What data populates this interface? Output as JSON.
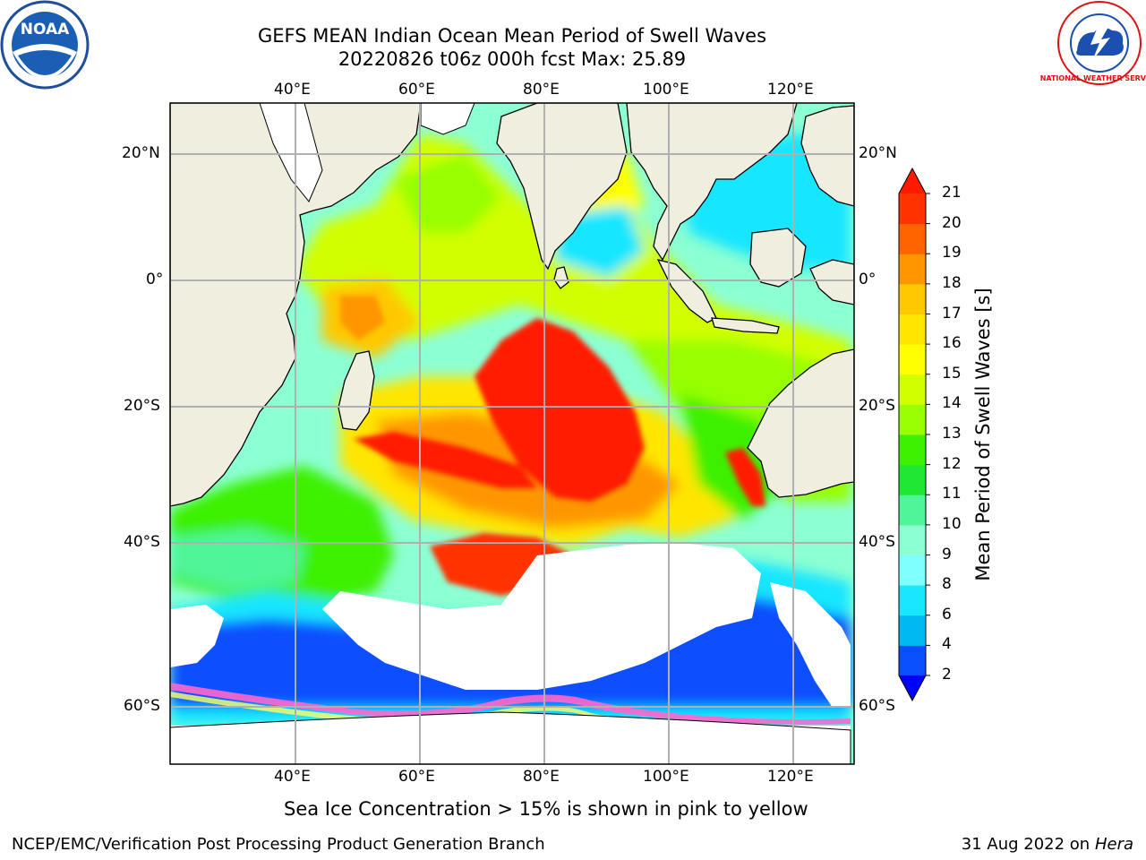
{
  "title": {
    "line1": "GEFS MEAN Indian Ocean Mean Period of Swell Waves",
    "line2": "20220826 t06z 000h fcst   Max: 25.89"
  },
  "axes": {
    "lon_labels": [
      "40°E",
      "60°E",
      "80°E",
      "100°E",
      "120°E"
    ],
    "lon_values": [
      40,
      60,
      80,
      100,
      120
    ],
    "lat_labels": [
      "20°N",
      "0°",
      "20°S",
      "40°S",
      "60°S"
    ],
    "lat_values": [
      20,
      0,
      -20,
      -40,
      -60
    ],
    "lon_range": [
      20,
      130
    ],
    "lat_range": [
      -77,
      28
    ]
  },
  "colorbar": {
    "label": "Mean Period of Swell Waves [s]",
    "ticks": [
      "2",
      "4",
      "6",
      "8",
      "9",
      "10",
      "11",
      "12",
      "13",
      "14",
      "15",
      "16",
      "17",
      "18",
      "19",
      "20",
      "21"
    ],
    "colors": [
      "#0a4fff",
      "#00b9f2",
      "#19e6ff",
      "#80ffff",
      "#8cffd3",
      "#50f599",
      "#1ee632",
      "#3cf000",
      "#96ff00",
      "#d2ff00",
      "#ffff00",
      "#ffe600",
      "#ffc800",
      "#ff9600",
      "#ff6400",
      "#ff3200",
      "#ff0000"
    ],
    "under_color": "#0000ff",
    "over_color": "#ff1a00"
  },
  "note": "Sea Ice Concentration > 15% is shown in pink to yellow",
  "footer": {
    "credit": "NCEP/EMC/Verification Post Processing Product Generation Branch",
    "date": "31 Aug 2022 on",
    "host": "Hera"
  },
  "logos": {
    "noaa": "NOAA",
    "nws": "NATIONAL WEATHER SERVICE"
  }
}
